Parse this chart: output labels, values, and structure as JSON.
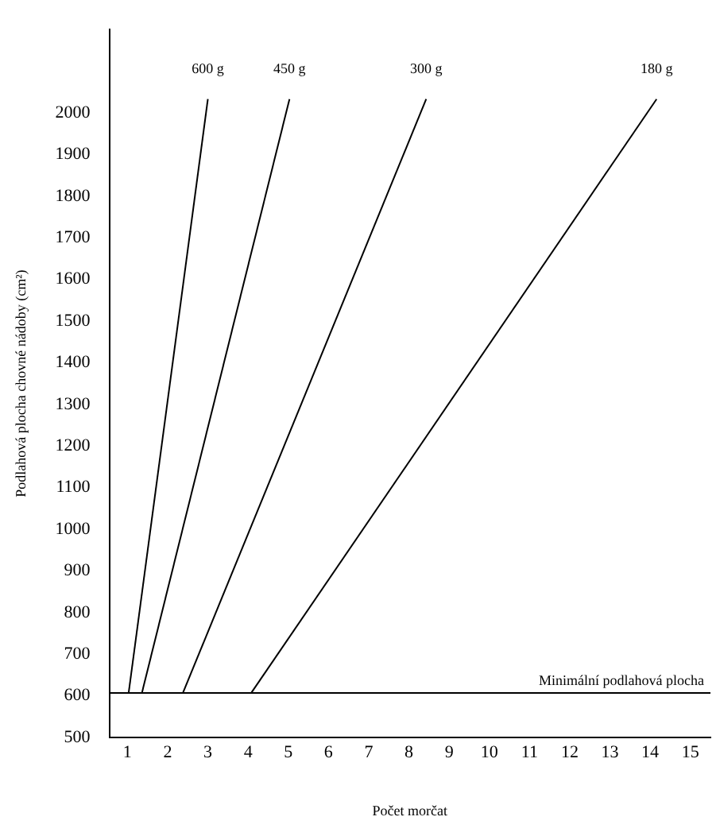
{
  "chart_data": {
    "type": "line",
    "xlabel": "Počet morčat",
    "ylabel": "Podlahová plocha chovné nádoby (cm²)",
    "xlim": [
      0.55,
      15.5
    ],
    "xticks": [
      1,
      2,
      3,
      4,
      5,
      6,
      7,
      8,
      9,
      10,
      11,
      12,
      13,
      14,
      15
    ],
    "ylim": [
      500,
      2200
    ],
    "yticks": [
      500,
      600,
      700,
      800,
      900,
      1000,
      1100,
      1200,
      1300,
      1400,
      1500,
      1600,
      1700,
      1800,
      1900,
      2000
    ],
    "series": [
      {
        "name": "600 g",
        "color": "#000000",
        "x": [
          1.03,
          3.0
        ],
        "values": [
          607,
          2033
        ]
      },
      {
        "name": "450 g",
        "color": "#000000",
        "x": [
          1.36,
          5.03
        ],
        "values": [
          607,
          2033
        ]
      },
      {
        "name": "300 g",
        "color": "#000000",
        "x": [
          2.38,
          8.43
        ],
        "values": [
          607,
          2033
        ]
      },
      {
        "name": "180 g",
        "color": "#000000",
        "x": [
          4.08,
          14.16
        ],
        "values": [
          607,
          2033
        ]
      }
    ],
    "ref_lines": [
      {
        "axis": "y",
        "value": 607,
        "label": "Minimální podlahová plocha",
        "color": "#000000"
      }
    ],
    "grid": false,
    "legend": false,
    "marker": "none",
    "line_style": "solid"
  }
}
